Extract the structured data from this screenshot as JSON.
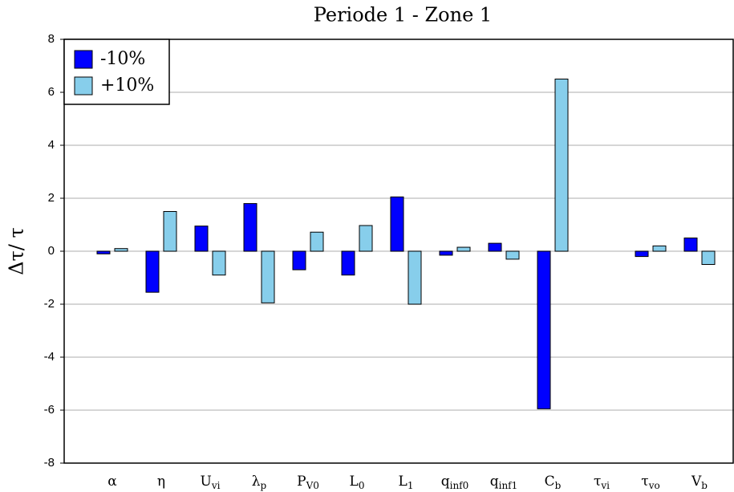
{
  "chart_data": {
    "type": "bar",
    "title": "Periode 1 - Zone 1",
    "y_label": "Δτ/ τ",
    "categories": [
      {
        "text": "α"
      },
      {
        "text": "η"
      },
      {
        "text": "U",
        "sub": "vi"
      },
      {
        "text": "λ",
        "sub": "p"
      },
      {
        "text": "P",
        "sub": "V0"
      },
      {
        "text": "L",
        "sub": "0"
      },
      {
        "text": "L",
        "sub": "1"
      },
      {
        "text": "q",
        "sub": "inf0"
      },
      {
        "text": "q",
        "sub": "inf1"
      },
      {
        "text": "C",
        "sub": "b"
      },
      {
        "text": "τ",
        "sub": "vi"
      },
      {
        "text": "τ",
        "sub": "vo"
      },
      {
        "text": "V",
        "sub": "b"
      }
    ],
    "series": [
      {
        "name": "-10%",
        "color": "#0000ff",
        "values": [
          -0.1,
          -1.55,
          0.95,
          1.8,
          -0.7,
          -0.9,
          2.05,
          -0.15,
          0.3,
          -5.95,
          0,
          -0.2,
          0.5
        ]
      },
      {
        "name": "+10%",
        "color": "#87ceeb",
        "values": [
          0.1,
          1.5,
          -0.9,
          -1.95,
          0.72,
          0.97,
          -2.0,
          0.15,
          -0.3,
          6.5,
          0,
          0.2,
          -0.5
        ]
      }
    ],
    "ylim": [
      -8,
      8
    ],
    "yticks": [
      -8,
      -6,
      -4,
      -2,
      0,
      2,
      4,
      6,
      8
    ],
    "grid": true,
    "legend": "upper left"
  }
}
